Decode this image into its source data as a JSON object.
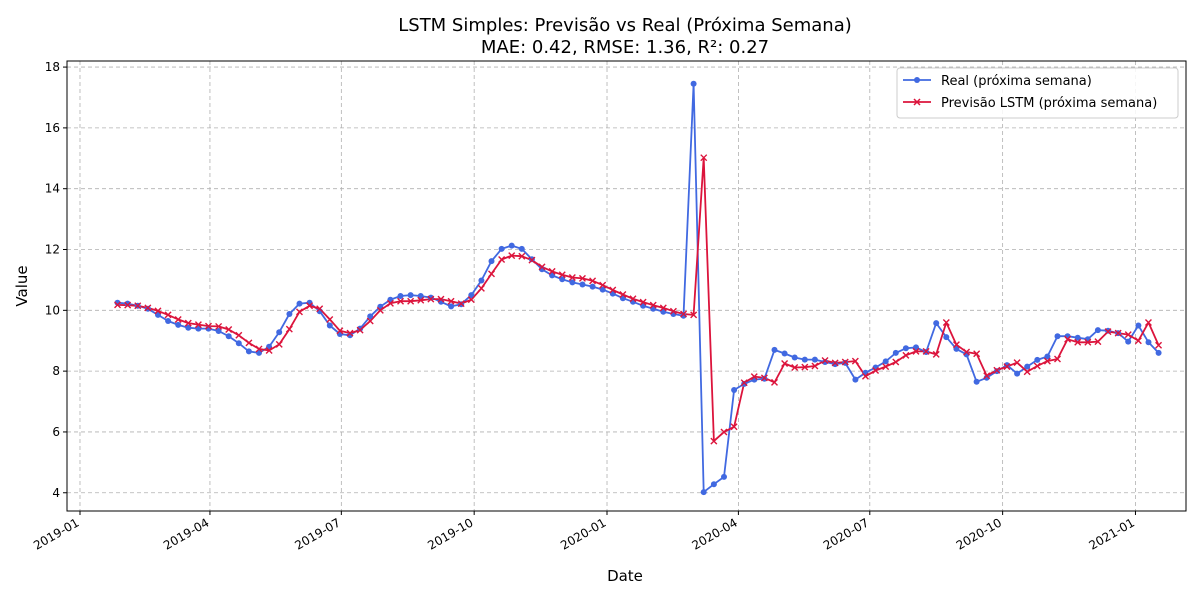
{
  "chart_data": {
    "type": "line",
    "title": "LSTM Simples: Previsão vs Real (Próxima Semana)",
    "subtitle": "MAE: 0.42, RMSE: 1.36, R²: 0.27",
    "xlabel": "Date",
    "ylabel": "Value",
    "x_start": "2019-01-27",
    "x_step_days": 7,
    "xlim": [
      "2018-12-23",
      "2021-02-05"
    ],
    "ylim": [
      3.4,
      18.2
    ],
    "x_ticks": [
      "2019-01",
      "2019-04",
      "2019-07",
      "2019-10",
      "2020-01",
      "2020-04",
      "2020-07",
      "2020-10",
      "2021-01"
    ],
    "x_tick_dates": [
      "2019-01-01",
      "2019-04-01",
      "2019-07-01",
      "2019-10-01",
      "2020-01-01",
      "2020-04-01",
      "2020-07-01",
      "2020-10-01",
      "2021-01-01"
    ],
    "y_ticks": [
      4,
      6,
      8,
      10,
      12,
      14,
      16,
      18
    ],
    "grid": true,
    "legend_position": "top-right",
    "series": [
      {
        "name": "Real (próxima semana)",
        "color": "#4169e1",
        "marker": "circle",
        "values": [
          10.25,
          10.22,
          10.15,
          10.05,
          9.85,
          9.65,
          9.52,
          9.43,
          9.4,
          9.4,
          9.32,
          9.15,
          8.92,
          8.65,
          8.6,
          8.8,
          9.28,
          9.88,
          10.22,
          10.25,
          9.97,
          9.5,
          9.22,
          9.18,
          9.4,
          9.8,
          10.12,
          10.35,
          10.47,
          10.5,
          10.47,
          10.42,
          10.28,
          10.13,
          10.2,
          10.5,
          10.98,
          11.62,
          12.02,
          12.13,
          12.02,
          11.68,
          11.35,
          11.15,
          11.02,
          10.92,
          10.85,
          10.78,
          10.68,
          10.55,
          10.4,
          10.28,
          10.15,
          10.05,
          9.95,
          9.88,
          9.82,
          17.45,
          4.02,
          4.28,
          4.52,
          7.38,
          7.58,
          7.72,
          7.75,
          8.7,
          8.58,
          8.45,
          8.38,
          8.38,
          8.3,
          8.23,
          8.27,
          7.72,
          7.95,
          8.12,
          8.32,
          8.6,
          8.75,
          8.78,
          8.63,
          9.58,
          9.12,
          8.73,
          8.55,
          7.65,
          7.78,
          8.0,
          8.2,
          7.92,
          8.15,
          8.37,
          8.48,
          9.15,
          9.15,
          9.1,
          9.05,
          9.35,
          9.33,
          9.25,
          8.97,
          9.5,
          8.95,
          8.6
        ]
      },
      {
        "name": "Previsão LSTM (próxima semana)",
        "color": "#dc143c",
        "marker": "x",
        "values": [
          10.18,
          10.17,
          10.15,
          10.08,
          9.98,
          9.85,
          9.7,
          9.58,
          9.53,
          9.48,
          9.47,
          9.37,
          9.18,
          8.93,
          8.73,
          8.68,
          8.88,
          9.38,
          9.95,
          10.15,
          10.05,
          9.7,
          9.33,
          9.25,
          9.35,
          9.65,
          10.0,
          10.23,
          10.3,
          10.3,
          10.33,
          10.37,
          10.37,
          10.3,
          10.22,
          10.35,
          10.72,
          11.2,
          11.67,
          11.8,
          11.78,
          11.65,
          11.43,
          11.28,
          11.17,
          11.08,
          11.05,
          10.97,
          10.83,
          10.67,
          10.52,
          10.38,
          10.27,
          10.17,
          10.08,
          9.97,
          9.88,
          9.85,
          15.02,
          5.7,
          6.0,
          6.17,
          7.62,
          7.82,
          7.78,
          7.63,
          8.25,
          8.12,
          8.13,
          8.17,
          8.35,
          8.27,
          8.3,
          8.33,
          7.83,
          8.02,
          8.15,
          8.3,
          8.52,
          8.65,
          8.65,
          8.55,
          9.6,
          8.87,
          8.63,
          8.57,
          7.85,
          8.03,
          8.15,
          8.28,
          7.98,
          8.17,
          8.33,
          8.4,
          9.05,
          8.95,
          8.95,
          8.97,
          9.3,
          9.25,
          9.2,
          9.0,
          9.6,
          8.85
        ]
      }
    ]
  }
}
